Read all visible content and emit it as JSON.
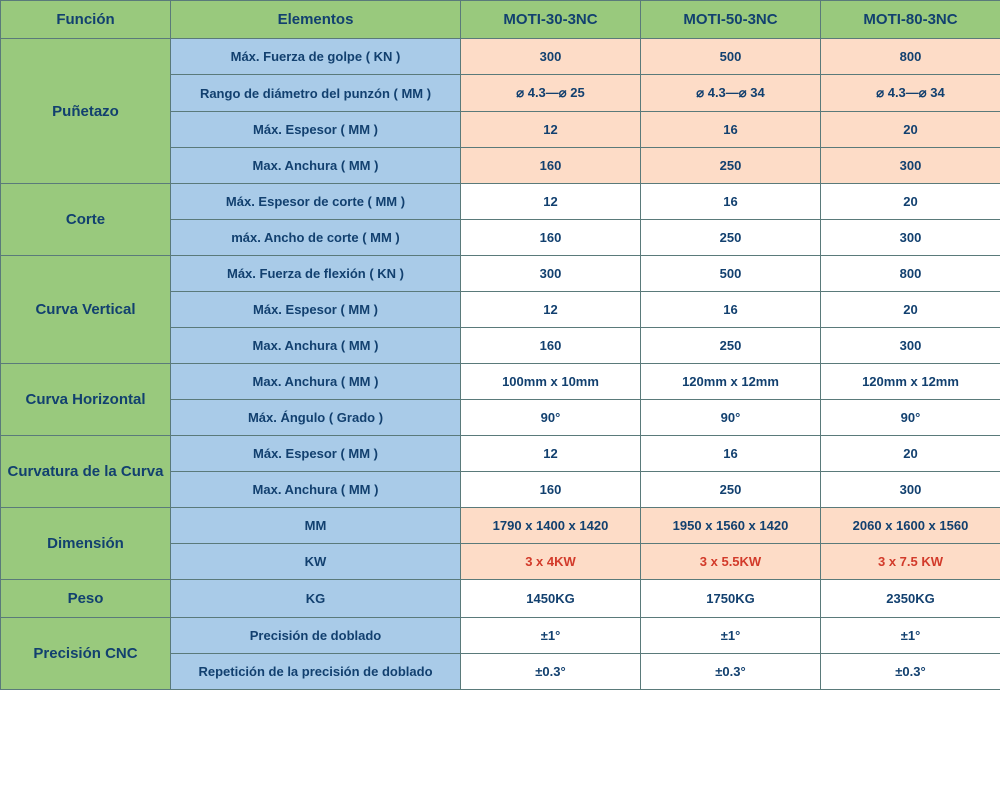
{
  "headers": {
    "funcion": "Función",
    "elementos": "Elementos",
    "m30": "MOTI-30-3NC",
    "m50": "MOTI-50-3NC",
    "m80": "MOTI-80-3NC"
  },
  "groups": [
    {
      "name": "Puñetazo",
      "rows": [
        {
          "elem": "Máx. Fuerza de golpe ( KN )",
          "v": [
            "300",
            "500",
            "800"
          ],
          "peach": true
        },
        {
          "elem": "Rango de diámetro del punzón ( MM )",
          "v": [
            "⌀ 4.3—⌀ 25",
            "⌀ 4.3—⌀ 34",
            "⌀ 4.3—⌀ 34"
          ],
          "peach": true
        },
        {
          "elem": "Máx. Espesor ( MM )",
          "v": [
            "12",
            "16",
            "20"
          ],
          "peach": true
        },
        {
          "elem": "Max. Anchura ( MM )",
          "v": [
            "160",
            "250",
            "300"
          ],
          "peach": true
        }
      ]
    },
    {
      "name": "Corte",
      "rows": [
        {
          "elem": "Máx. Espesor de corte ( MM )",
          "v": [
            "12",
            "16",
            "20"
          ]
        },
        {
          "elem": "máx. Ancho de corte ( MM )",
          "v": [
            "160",
            "250",
            "300"
          ]
        }
      ]
    },
    {
      "name": "Curva Vertical",
      "rows": [
        {
          "elem": "Máx. Fuerza de flexión ( KN )",
          "v": [
            "300",
            "500",
            "800"
          ]
        },
        {
          "elem": "Máx. Espesor ( MM )",
          "v": [
            "12",
            "16",
            "20"
          ]
        },
        {
          "elem": "Max. Anchura ( MM )",
          "v": [
            "160",
            "250",
            "300"
          ]
        }
      ]
    },
    {
      "name": "Curva Horizontal",
      "rows": [
        {
          "elem": "Max. Anchura ( MM )",
          "v": [
            "100mm x 10mm",
            "120mm x 12mm",
            "120mm x 12mm"
          ]
        },
        {
          "elem": "Máx. Ángulo ( Grado )",
          "v": [
            "90°",
            "90°",
            "90°"
          ]
        }
      ]
    },
    {
      "name": "Curvatura de la Curva",
      "rows": [
        {
          "elem": "Máx. Espesor ( MM )",
          "v": [
            "12",
            "16",
            "20"
          ]
        },
        {
          "elem": "Max. Anchura ( MM )",
          "v": [
            "160",
            "250",
            "300"
          ]
        }
      ]
    },
    {
      "name": "Dimensión",
      "rows": [
        {
          "elem": "MM",
          "v": [
            "1790 x 1400 x 1420",
            "1950 x 1560 x 1420",
            "2060 x 1600 x 1560"
          ],
          "peach": true
        },
        {
          "elem": "KW",
          "v": [
            "3 x 4KW",
            "3 x 5.5KW",
            "3 x 7.5 KW"
          ],
          "peach": true,
          "red": true
        }
      ]
    },
    {
      "name": "Peso",
      "rows": [
        {
          "elem": "KG",
          "v": [
            "1450KG",
            "1750KG",
            "2350KG"
          ]
        }
      ]
    },
    {
      "name": "Precisión CNC",
      "rows": [
        {
          "elem": "Precisión de doblado",
          "v": [
            "±1°",
            "±1°",
            "±1°"
          ]
        },
        {
          "elem": "Repetición de la precisión de doblado",
          "v": [
            "±0.3°",
            "±0.3°",
            "±0.3°"
          ]
        }
      ]
    }
  ],
  "style": {
    "header_bg": "#99c97d",
    "elem_bg": "#a9cbe8",
    "peach_bg": "#fddcc7",
    "val_bg": "#ffffff",
    "text_color": "#12406f",
    "red_color": "#d23a2a",
    "border_color": "#5a7a7a",
    "font": "Arial",
    "header_fontsize": 15,
    "body_fontsize": 13
  }
}
